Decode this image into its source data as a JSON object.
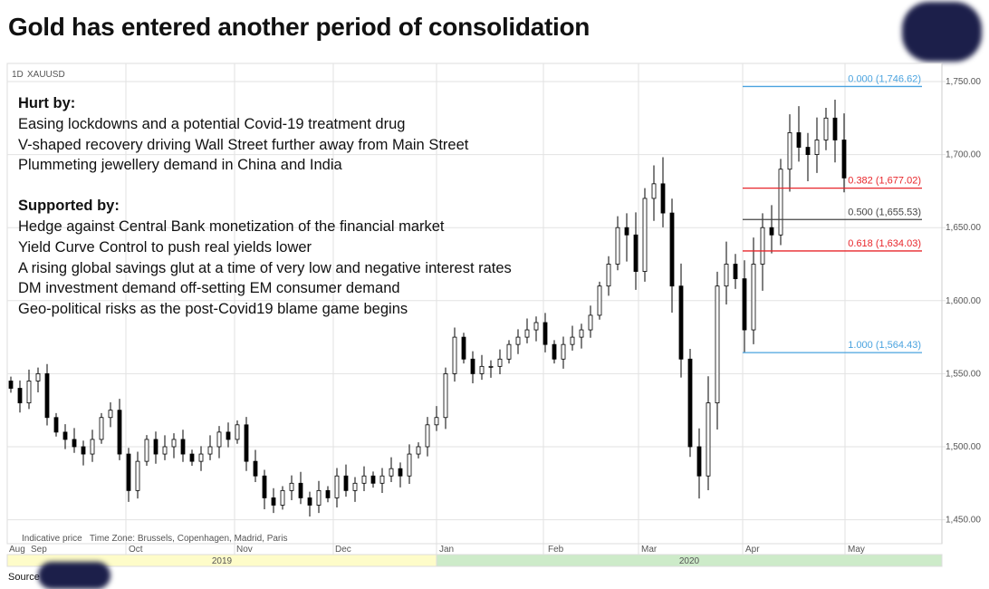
{
  "title": "Gold has entered another period of consolidation",
  "source_label": "Source",
  "notes": {
    "hurt_heading": "Hurt by:",
    "hurt": [
      "Easing lockdowns and a potential Covid-19 treatment drug",
      "V-shaped recovery driving Wall Street further away from Main Street",
      "Plummeting jewellery demand in China and India"
    ],
    "support_heading": "Supported by:",
    "support": [
      "Hedge against Central Bank monetization of the financial market",
      "Yield Curve Control to push real yields lower",
      "A rising global savings glut at a time of very low and negative interest rates",
      "DM investment demand off-setting EM consumer demand",
      "Geo-political risks as the post-Covid19 blame game begins"
    ]
  },
  "chart_data": {
    "type": "candlestick",
    "interval": "1D",
    "symbol": "XAUUSD",
    "footnote": "Indicative price   Time Zone: Brussels, Copenhagen, Madrid, Paris",
    "ylim": [
      1435,
      1765
    ],
    "y_ticks": [
      "1,750.00",
      "1,700.00",
      "1,650.00",
      "1,600.00",
      "1,550.00",
      "1,500.00",
      "1,450.00"
    ],
    "y_tick_values": [
      1750,
      1700,
      1650,
      1600,
      1550,
      1500,
      1450
    ],
    "months": [
      "Aug",
      "Sep",
      "Oct",
      "Nov",
      "Dec",
      "Jan",
      "Feb",
      "Mar",
      "Apr",
      "May"
    ],
    "years": [
      {
        "label": "2019",
        "color": "#fefcc9"
      },
      {
        "label": "2020",
        "color": "#cdebc9"
      }
    ],
    "grid": true,
    "up_color": "#ffffff",
    "down_color": "#000000",
    "closes": [
      1540,
      1530,
      1545,
      1550,
      1520,
      1510,
      1505,
      1500,
      1495,
      1505,
      1520,
      1525,
      1495,
      1470,
      1490,
      1505,
      1495,
      1500,
      1505,
      1495,
      1490,
      1495,
      1500,
      1510,
      1505,
      1515,
      1490,
      1480,
      1465,
      1460,
      1470,
      1475,
      1465,
      1460,
      1470,
      1465,
      1480,
      1470,
      1475,
      1480,
      1475,
      1480,
      1485,
      1480,
      1495,
      1500,
      1515,
      1520,
      1550,
      1575,
      1560,
      1550,
      1555,
      1555,
      1560,
      1570,
      1575,
      1580,
      1585,
      1570,
      1560,
      1570,
      1575,
      1580,
      1590,
      1610,
      1625,
      1650,
      1645,
      1620,
      1670,
      1680,
      1660,
      1610,
      1560,
      1500,
      1480,
      1530,
      1610,
      1625,
      1615,
      1580,
      1625,
      1650,
      1645,
      1690,
      1715,
      1705,
      1700,
      1710,
      1725,
      1710,
      1684
    ],
    "fibonacci": [
      {
        "label": "0.000 (1,746.62)",
        "value": 1746.62,
        "color": "#4aa3df"
      },
      {
        "label": "0.382 (1,677.02)",
        "value": 1677.02,
        "color": "#e8262b"
      },
      {
        "label": "0.500 (1,655.53)",
        "value": 1655.53,
        "color": "#444444"
      },
      {
        "label": "0.618 (1,634.03)",
        "value": 1634.03,
        "color": "#e8262b"
      },
      {
        "label": "1.000 (1,564.43)",
        "value": 1564.43,
        "color": "#4aa3df"
      }
    ]
  }
}
